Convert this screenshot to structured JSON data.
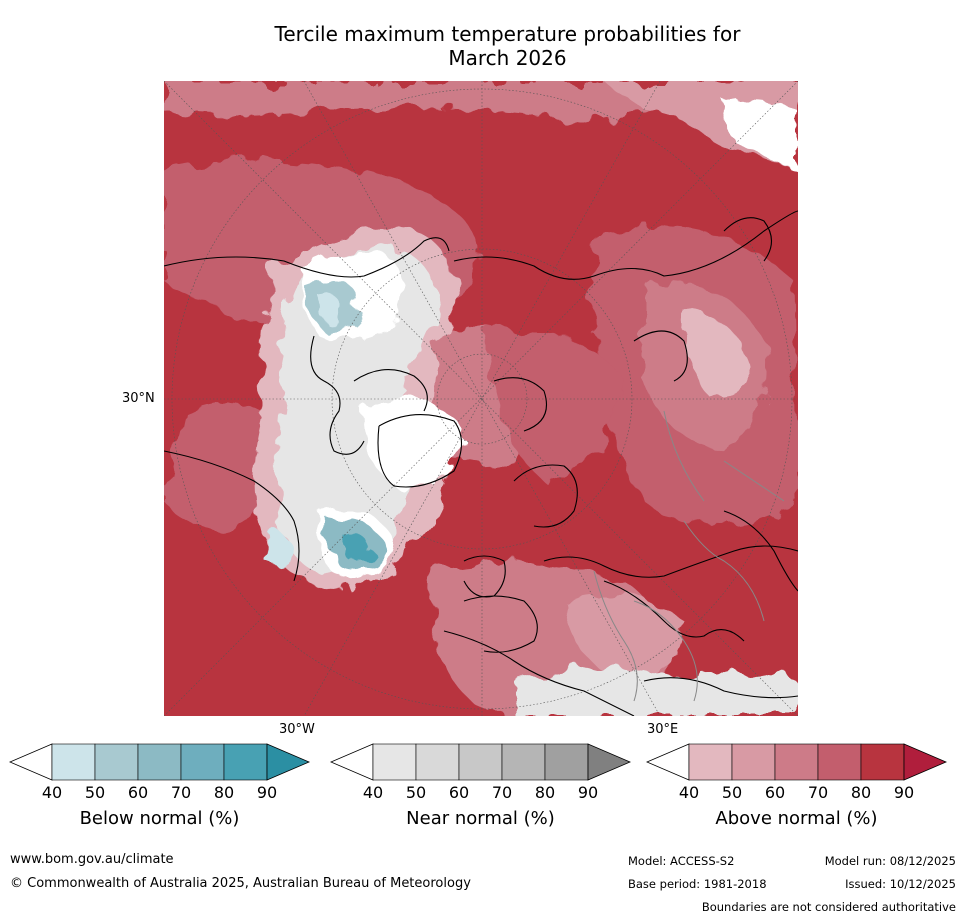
{
  "title_line1": "Tercile maximum temperature probabilities for",
  "title_line2": "March 2026",
  "map": {
    "lat_label": "30°N",
    "lon_labels": [
      "30°W",
      "30°E"
    ],
    "colors": {
      "above": [
        "#e3b8bf",
        "#d89aa4",
        "#cd7b88",
        "#c35e6d",
        "#b8343f",
        "#b01e3c"
      ],
      "near": [
        "#e6e6e6",
        "#d9d9d9",
        "#c8c8c8",
        "#b5b5b5",
        "#a0a0a0",
        "#808080"
      ],
      "below": [
        "#cde4ea",
        "#a8c9d0",
        "#8cbac4",
        "#6eaebe",
        "#48a1b3",
        "#2b8fa3"
      ]
    }
  },
  "colorbars": [
    {
      "label": "Below normal (%)",
      "ticks": [
        "40",
        "50",
        "60",
        "70",
        "80",
        "90"
      ],
      "colors": [
        "#cde4ea",
        "#a8c9d0",
        "#8cbac4",
        "#6eaebe",
        "#48a1b3"
      ],
      "extend_color": "#2b8fa3"
    },
    {
      "label": "Near normal (%)",
      "ticks": [
        "40",
        "50",
        "60",
        "70",
        "80",
        "90"
      ],
      "colors": [
        "#e6e6e6",
        "#d9d9d9",
        "#c8c8c8",
        "#b5b5b5",
        "#a0a0a0"
      ],
      "extend_color": "#808080"
    },
    {
      "label": "Above normal (%)",
      "ticks": [
        "40",
        "50",
        "60",
        "70",
        "80",
        "90"
      ],
      "colors": [
        "#e3b8bf",
        "#d89aa4",
        "#cd7b88",
        "#c35e6d",
        "#b8343f"
      ],
      "extend_color": "#b01e3c"
    }
  ],
  "footer": {
    "url": "www.bom.gov.au/climate",
    "copyright": "© Commonwealth of Australia 2025, Australian Bureau of Meteorology",
    "model": "Model: ACCESS-S2",
    "model_run": "Model run: 08/12/2025",
    "base_period": "Base period: 1981-2018",
    "issued": "Issued: 10/12/2025",
    "disclaimer": "Boundaries are not considered authoritative"
  }
}
